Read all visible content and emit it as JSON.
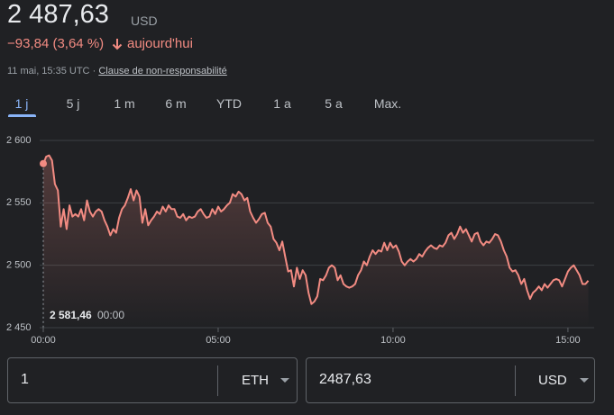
{
  "header": {
    "price": "2 487,63",
    "currency": "USD",
    "change": "−93,84 (3,64 %)",
    "change_suffix": "aujourd'hui",
    "timestamp": "11 mai, 15:35 UTC",
    "separator": "·",
    "disclaimer": "Clause de non-responsabilité"
  },
  "tabs": {
    "items": [
      "1 j",
      "5 j",
      "1 m",
      "6 m",
      "YTD",
      "1 a",
      "5 a",
      "Max."
    ],
    "selected": 0
  },
  "chart_data": {
    "type": "line",
    "color": "#f28b82",
    "grid": true,
    "ylim": [
      2450,
      2600
    ],
    "yticks": [
      {
        "value": 2450,
        "label": "2 450"
      },
      {
        "value": 2500,
        "label": "2 500"
      },
      {
        "value": 2550,
        "label": "2 550"
      },
      {
        "value": 2600,
        "label": "2 600"
      }
    ],
    "xlim": [
      0,
      945
    ],
    "xticks": [
      {
        "value": 0,
        "label": "00:00"
      },
      {
        "value": 300,
        "label": "05:00"
      },
      {
        "value": 600,
        "label": "10:00"
      },
      {
        "value": 900,
        "label": "15:00"
      }
    ],
    "annotation": {
      "value": 2581.46,
      "label": "2 581,46",
      "time": {
        "value": 0,
        "label": "00:00"
      }
    },
    "x": [
      0,
      5,
      10,
      15,
      20,
      25,
      30,
      35,
      40,
      45,
      50,
      55,
      60,
      65,
      70,
      75,
      80,
      85,
      90,
      95,
      100,
      105,
      110,
      115,
      120,
      125,
      130,
      135,
      140,
      145,
      150,
      155,
      160,
      165,
      170,
      175,
      180,
      185,
      190,
      195,
      200,
      205,
      210,
      215,
      220,
      225,
      230,
      235,
      240,
      245,
      250,
      255,
      260,
      265,
      270,
      275,
      280,
      285,
      290,
      295,
      300,
      305,
      310,
      315,
      320,
      325,
      330,
      335,
      340,
      345,
      350,
      355,
      360,
      365,
      370,
      375,
      380,
      385,
      390,
      395,
      400,
      405,
      410,
      415,
      420,
      425,
      430,
      435,
      440,
      445,
      450,
      455,
      460,
      465,
      470,
      475,
      480,
      485,
      490,
      495,
      500,
      505,
      510,
      515,
      520,
      525,
      530,
      535,
      540,
      545,
      550,
      555,
      560,
      565,
      570,
      575,
      580,
      585,
      590,
      595,
      600,
      605,
      610,
      615,
      620,
      625,
      630,
      635,
      640,
      645,
      650,
      655,
      660,
      665,
      670,
      675,
      680,
      685,
      690,
      695,
      700,
      705,
      710,
      715,
      720,
      725,
      730,
      735,
      740,
      745,
      750,
      755,
      760,
      765,
      770,
      775,
      780,
      785,
      790,
      795,
      800,
      805,
      810,
      815,
      820,
      825,
      830,
      835,
      840,
      845,
      850,
      855,
      860,
      865,
      870,
      875,
      880,
      885,
      890,
      895,
      900,
      905,
      910,
      915,
      920,
      925,
      930,
      935
    ],
    "values": [
      2581,
      2587,
      2588,
      2584,
      2565,
      2560,
      2531,
      2545,
      2529,
      2548,
      2539,
      2541,
      2539,
      2545,
      2536,
      2552,
      2543,
      2539,
      2543,
      2545,
      2543,
      2536,
      2531,
      2524,
      2529,
      2526,
      2538,
      2545,
      2548,
      2554,
      2561,
      2552,
      2560,
      2555,
      2534,
      2545,
      2532,
      2536,
      2539,
      2543,
      2541,
      2547,
      2543,
      2548,
      2545,
      2545,
      2539,
      2538,
      2541,
      2536,
      2539,
      2538,
      2539,
      2543,
      2545,
      2541,
      2538,
      2539,
      2545,
      2541,
      2547,
      2543,
      2545,
      2548,
      2550,
      2557,
      2555,
      2559,
      2557,
      2552,
      2554,
      2543,
      2538,
      2534,
      2537,
      2541,
      2542,
      2534,
      2531,
      2521,
      2518,
      2512,
      2519,
      2507,
      2495,
      2496,
      2483,
      2498,
      2489,
      2496,
      2492,
      2478,
      2469,
      2471,
      2475,
      2489,
      2488,
      2492,
      2498,
      2500,
      2498,
      2488,
      2492,
      2485,
      2483,
      2482,
      2483,
      2485,
      2492,
      2496,
      2503,
      2500,
      2507,
      2512,
      2509,
      2512,
      2511,
      2518,
      2512,
      2518,
      2514,
      2516,
      2511,
      2503,
      2500,
      2503,
      2505,
      2503,
      2505,
      2509,
      2507,
      2511,
      2514,
      2516,
      2514,
      2513,
      2516,
      2515,
      2518,
      2524,
      2526,
      2521,
      2525,
      2531,
      2526,
      2529,
      2524,
      2519,
      2525,
      2526,
      2519,
      2516,
      2519,
      2518,
      2521,
      2525,
      2524,
      2519,
      2512,
      2507,
      2498,
      2495,
      2496,
      2492,
      2485,
      2489,
      2480,
      2473,
      2478,
      2480,
      2483,
      2480,
      2485,
      2482,
      2485,
      2488,
      2489,
      2488,
      2483,
      2489,
      2495,
      2498,
      2500,
      2496,
      2492,
      2485,
      2485,
      2487.63
    ]
  },
  "converter": {
    "from": {
      "amount": "1",
      "unit": "ETH"
    },
    "to": {
      "amount": "2487,63",
      "unit": "USD"
    }
  }
}
